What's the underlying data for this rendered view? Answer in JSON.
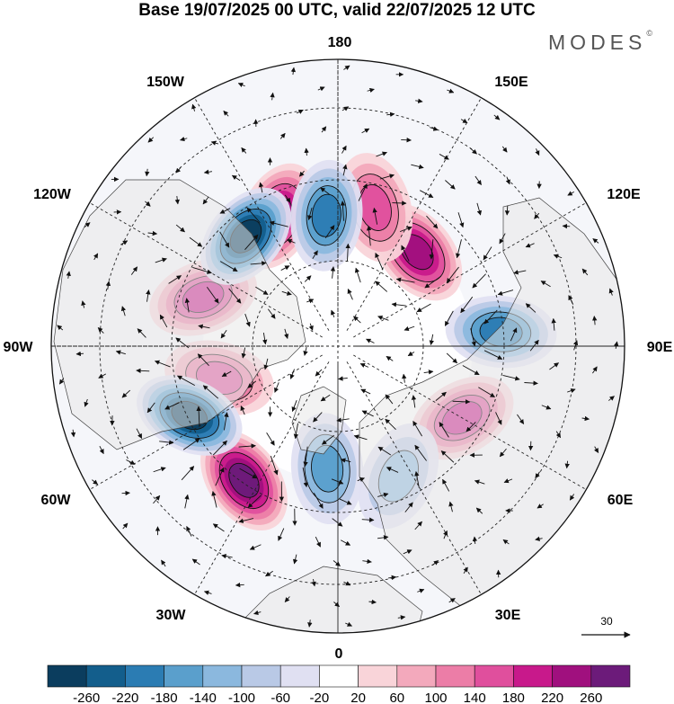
{
  "header": {
    "title": "Base 19/07/2025 00 UTC, valid 22/07/2025 12 UTC",
    "brand": "MODES",
    "brand_mark": "©"
  },
  "map": {
    "projection": "north-polar-stereographic",
    "longitude_labels": {
      "top": "180",
      "bottom": "0",
      "left": "90W",
      "right": "90E",
      "upper_left_1": "150W",
      "upper_left_2": "120W",
      "lower_left_1": "60W",
      "lower_left_2": "30W",
      "upper_right_1": "150E",
      "upper_right_2": "120E",
      "lower_right_1": "60E",
      "lower_right_2": "30E"
    },
    "reference_vector": {
      "label": "30"
    },
    "anomaly_centers": [
      {
        "type": "positive",
        "lon": -35,
        "lat": 50,
        "strength": 240
      },
      {
        "type": "positive",
        "lon": -110,
        "lat": 55,
        "strength": 180
      },
      {
        "type": "positive",
        "lon": -155,
        "lat": 55,
        "strength": 200
      },
      {
        "type": "positive",
        "lon": -75,
        "lat": 60,
        "strength": 140
      },
      {
        "type": "positive",
        "lon": 140,
        "lat": 60,
        "strength": 200
      },
      {
        "type": "positive",
        "lon": 60,
        "lat": 55,
        "strength": 160
      },
      {
        "type": "positive",
        "lon": 165,
        "lat": 55,
        "strength": 120
      },
      {
        "type": "negative",
        "lon": -140,
        "lat": 55,
        "strength": 240
      },
      {
        "type": "negative",
        "lon": -65,
        "lat": 50,
        "strength": 240
      },
      {
        "type": "negative",
        "lon": -175,
        "lat": 58,
        "strength": 160
      },
      {
        "type": "negative",
        "lon": 95,
        "lat": 50,
        "strength": 180
      },
      {
        "type": "negative",
        "lon": -5,
        "lat": 60,
        "strength": 140
      },
      {
        "type": "negative",
        "lon": 25,
        "lat": 55,
        "strength": 100
      }
    ]
  },
  "colorbar": {
    "colors": [
      "#0b3d5e",
      "#135e8c",
      "#2b7cb3",
      "#5a9fcc",
      "#8bb8de",
      "#b9c9e6",
      "#e0e0f2",
      "#ffffff",
      "#f9d4d9",
      "#f3a9bc",
      "#ec7da7",
      "#e04f9d",
      "#c8198b",
      "#a0107e",
      "#6c1b7a"
    ],
    "labels": [
      "-260",
      "-220",
      "-180",
      "-140",
      "-100",
      "-60",
      "-20",
      "20",
      "60",
      "100",
      "140",
      "180",
      "220",
      "260"
    ]
  }
}
